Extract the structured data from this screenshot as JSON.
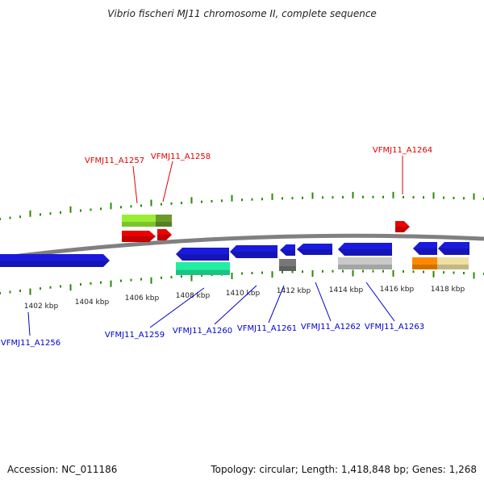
{
  "title": "Vibrio fischeri MJ11 chromosome II, complete sequence",
  "footer": {
    "accession": "Accession: NC_011186",
    "summary": "Topology: circular; Length: 1,418,848 bp; Genes: 1,268"
  },
  "colors": {
    "backbone": "#808080",
    "tick": "#2a8a00",
    "label_top": "#e00000",
    "label_bottom": "#0000cc",
    "blue_feature": "#1a1adf",
    "red_feature": "#ee0000",
    "light_green": "#99ee33",
    "olive": "#6b9a2a",
    "aqua": "#22eea0",
    "dark_gray": "#777777",
    "light_gray": "#c8c8c8",
    "orange": "#ff8a00",
    "beige": "#eee0a0"
  },
  "scale_labels": [
    "1402 kbp",
    "1404 kbp",
    "1406 kbp",
    "1408 kbp",
    "1410 kbp",
    "1412 kbp",
    "1414 kbp",
    "1416 kbp",
    "1418 kbp"
  ],
  "gene_labels": [
    {
      "text": "VFMJ11_A1257",
      "strand": "top"
    },
    {
      "text": "VFMJ11_A1258",
      "strand": "top"
    },
    {
      "text": "VFMJ11_A1264",
      "strand": "top"
    },
    {
      "text": "VFMJ11_A1256",
      "strand": "bottom"
    },
    {
      "text": "VFMJ11_A1259",
      "strand": "bottom"
    },
    {
      "text": "VFMJ11_A1260",
      "strand": "bottom"
    },
    {
      "text": "VFMJ11_A1261",
      "strand": "bottom"
    },
    {
      "text": "VFMJ11_A1262",
      "strand": "bottom"
    },
    {
      "text": "VFMJ11_A1263",
      "strand": "bottom"
    }
  ]
}
